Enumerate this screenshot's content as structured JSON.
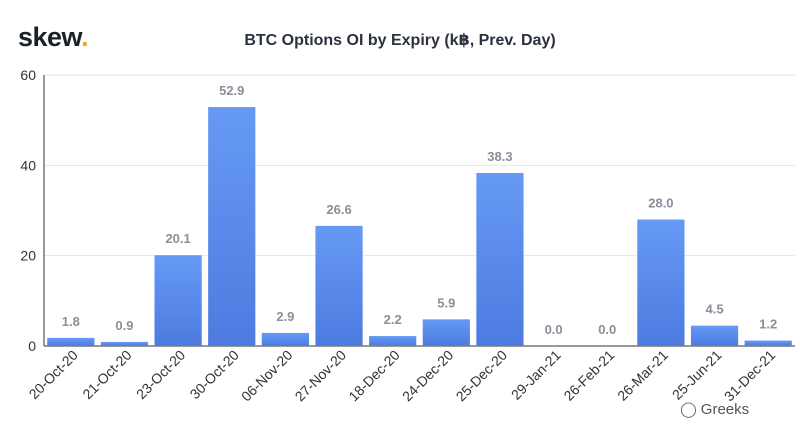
{
  "brand": {
    "name": "skew",
    "dot": "."
  },
  "watermark": {
    "icon": "wechat-bubble-icon",
    "text": "Greeks"
  },
  "chart_data": {
    "type": "bar",
    "title": "BTC Options OI by Expiry (k฿, Prev. Day)",
    "xlabel": "",
    "ylabel": "",
    "categories": [
      "20-Oct-20",
      "21-Oct-20",
      "23-Oct-20",
      "30-Oct-20",
      "06-Nov-20",
      "27-Nov-20",
      "18-Dec-20",
      "24-Dec-20",
      "25-Dec-20",
      "29-Jan-21",
      "26-Feb-21",
      "26-Mar-21",
      "25-Jun-21",
      "31-Dec-21"
    ],
    "values": [
      1.8,
      0.9,
      20.1,
      52.9,
      2.9,
      26.6,
      2.2,
      5.9,
      38.3,
      0.0,
      0.0,
      28.0,
      4.5,
      1.2
    ],
    "value_labels": [
      "1.8",
      "0.9",
      "20.1",
      "52.9",
      "2.9",
      "26.6",
      "2.2",
      "5.9",
      "38.3",
      "0.0",
      "0.0",
      "28.0",
      "4.5",
      "1.2"
    ],
    "ylim": [
      0,
      60
    ],
    "yticks": [
      0,
      20,
      40,
      60
    ],
    "grid": true,
    "legend": "none",
    "colors": {
      "bar_top": "#6699f5",
      "bar_bottom": "#4d7be0",
      "label": "#8a8f99",
      "grid": "#e6e6e6",
      "axis": "#333333"
    }
  }
}
